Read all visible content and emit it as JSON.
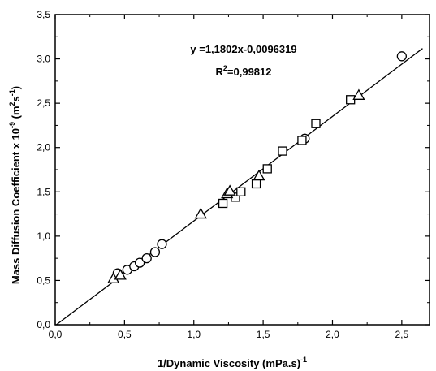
{
  "chart_data": {
    "type": "scatter",
    "xlabel_main": "1/Dynamic Viscosity (mPa.s)",
    "xlabel_sup": "-1",
    "ylabel_main": "Mass Diffusion Coefficient x 10",
    "ylabel_exp": "-9",
    "ylabel_unit": " (m",
    "ylabel_unit_exp1": "2",
    "ylabel_mid": "s",
    "ylabel_unit_exp2": "-1",
    "ylabel_close": ")",
    "xlim": [
      0.0,
      2.7
    ],
    "ylim": [
      0.0,
      3.5
    ],
    "xticks": [
      0.0,
      0.5,
      1.0,
      1.5,
      2.0,
      2.5
    ],
    "xtick_labels": [
      "0,0",
      "0,5",
      "1,0",
      "1,5",
      "2,0",
      "2,5"
    ],
    "yticks": [
      0.0,
      0.5,
      1.0,
      1.5,
      2.0,
      2.5,
      3.0,
      3.5
    ],
    "ytick_labels": [
      "0,0",
      "0,5",
      "1,0",
      "1,5",
      "2,0",
      "2,5",
      "3,0",
      "3,5"
    ],
    "annotation_equation": "y =1,1802x-0,0096319",
    "annotation_r2_prefix": "R",
    "annotation_r2_sup": "2",
    "annotation_r2_value": "=0,99812",
    "fit": {
      "slope": 1.1802,
      "intercept": -0.0096319,
      "x_range": [
        0.0,
        2.65
      ]
    },
    "series": [
      {
        "marker": "circle",
        "x": [
          0.45,
          0.52,
          0.57,
          0.61,
          0.66,
          0.72,
          0.77,
          1.8,
          2.5
        ],
        "y": [
          0.58,
          0.62,
          0.66,
          0.7,
          0.75,
          0.82,
          0.91,
          2.1,
          3.03
        ]
      },
      {
        "marker": "square",
        "x": [
          1.21,
          1.3,
          1.34,
          1.45,
          1.53,
          1.64,
          1.78,
          1.88,
          2.13
        ],
        "y": [
          1.37,
          1.44,
          1.5,
          1.59,
          1.76,
          1.96,
          2.08,
          2.27,
          2.54
        ]
      },
      {
        "marker": "triangle",
        "x": [
          0.42,
          0.47,
          1.05,
          1.24,
          1.26,
          1.47,
          2.19
        ],
        "y": [
          0.52,
          0.56,
          1.25,
          1.48,
          1.51,
          1.68,
          2.59
        ]
      }
    ]
  }
}
